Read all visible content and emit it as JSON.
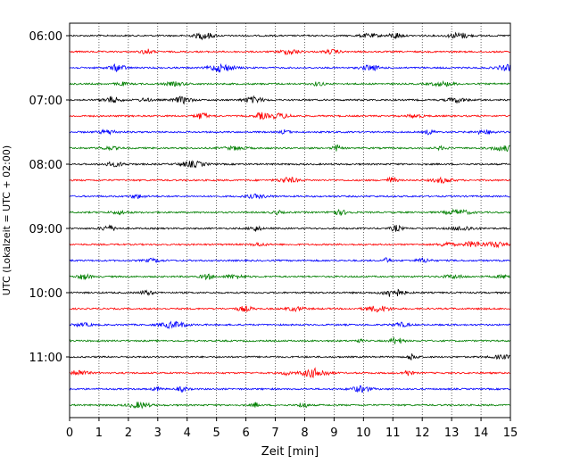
{
  "chart_data": {
    "type": "line",
    "title": "",
    "xlabel": "Zeit  [min]",
    "ylabel": "UTC (Lokalzeit = UTC + 02:00)",
    "xlim": [
      0,
      15
    ],
    "x_ticks": [
      "0",
      "1",
      "2",
      "3",
      "4",
      "5",
      "6",
      "7",
      "8",
      "9",
      "10",
      "11",
      "12",
      "13",
      "14",
      "15"
    ],
    "y_tick_labels": [
      "06:00",
      "07:00",
      "08:00",
      "09:00",
      "10:00",
      "11:00"
    ],
    "grid": "vertical dotted at each minute",
    "legend": "none",
    "trace_interval_minutes": 15,
    "start_time": "06:00",
    "trace_colors": [
      "#000000",
      "#ff0000",
      "#0000ff",
      "#007f00"
    ],
    "series": [
      {
        "start": "06:00",
        "color": "#000000"
      },
      {
        "start": "06:15",
        "color": "#ff0000"
      },
      {
        "start": "06:30",
        "color": "#0000ff"
      },
      {
        "start": "06:45",
        "color": "#007f00"
      },
      {
        "start": "07:00",
        "color": "#000000"
      },
      {
        "start": "07:15",
        "color": "#ff0000"
      },
      {
        "start": "07:30",
        "color": "#0000ff"
      },
      {
        "start": "07:45",
        "color": "#007f00"
      },
      {
        "start": "08:00",
        "color": "#000000"
      },
      {
        "start": "08:15",
        "color": "#ff0000"
      },
      {
        "start": "08:30",
        "color": "#0000ff"
      },
      {
        "start": "08:45",
        "color": "#007f00"
      },
      {
        "start": "09:00",
        "color": "#000000"
      },
      {
        "start": "09:15",
        "color": "#ff0000"
      },
      {
        "start": "09:30",
        "color": "#0000ff"
      },
      {
        "start": "09:45",
        "color": "#007f00"
      },
      {
        "start": "10:00",
        "color": "#000000"
      },
      {
        "start": "10:15",
        "color": "#ff0000"
      },
      {
        "start": "10:30",
        "color": "#0000ff"
      },
      {
        "start": "10:45",
        "color": "#007f00"
      },
      {
        "start": "11:00",
        "color": "#000000"
      },
      {
        "start": "11:15",
        "color": "#ff0000"
      },
      {
        "start": "11:30",
        "color": "#0000ff"
      },
      {
        "start": "11:45",
        "color": "#007f00"
      }
    ]
  }
}
